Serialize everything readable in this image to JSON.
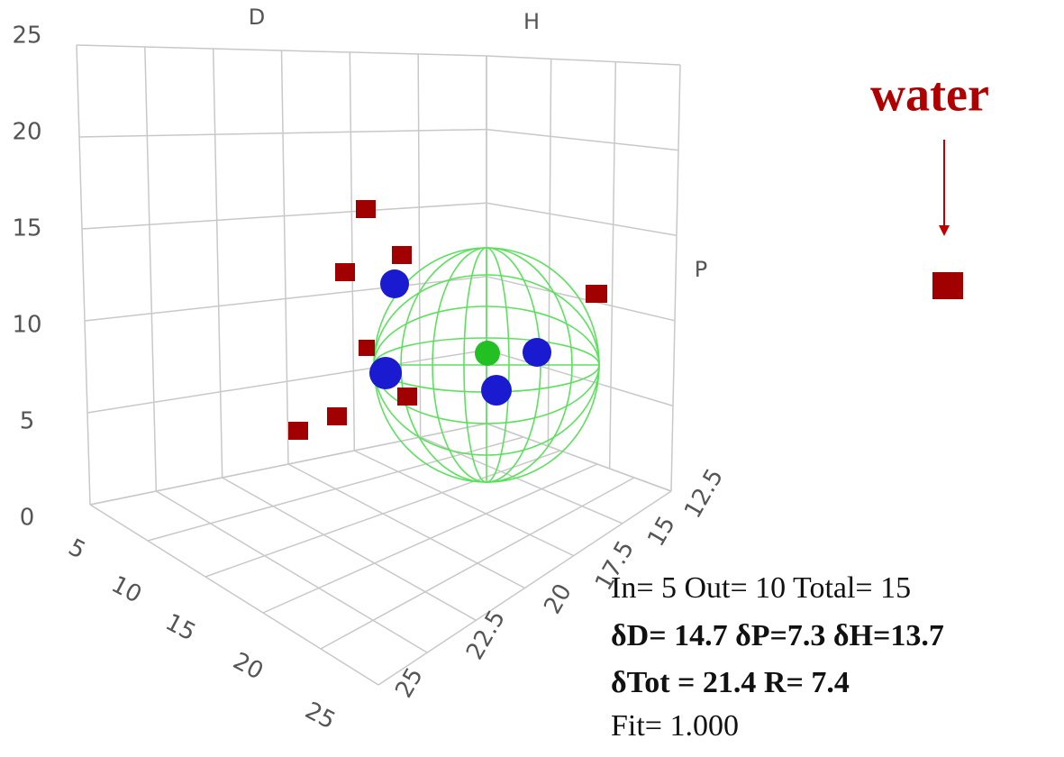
{
  "axes": {
    "vertical": {
      "ticks": [
        "25",
        "20",
        "15",
        "10",
        "5",
        "0"
      ]
    },
    "left": {
      "ticks": [
        "5",
        "10",
        "15",
        "20",
        "25"
      ]
    },
    "right": {
      "ticks": [
        "12.5",
        "15",
        "17.5",
        "20",
        "22.5",
        "25"
      ]
    },
    "labels": {
      "d": "D",
      "h": "H",
      "p": "P"
    }
  },
  "annotation": "water",
  "stats": [
    "In= 5 Out= 10 Total= 15",
    "δD= 14.7 δP=7.3 δH=13.7",
    "δTot = 21.4 R= 7.4",
    "Fit= 1.000"
  ]
}
